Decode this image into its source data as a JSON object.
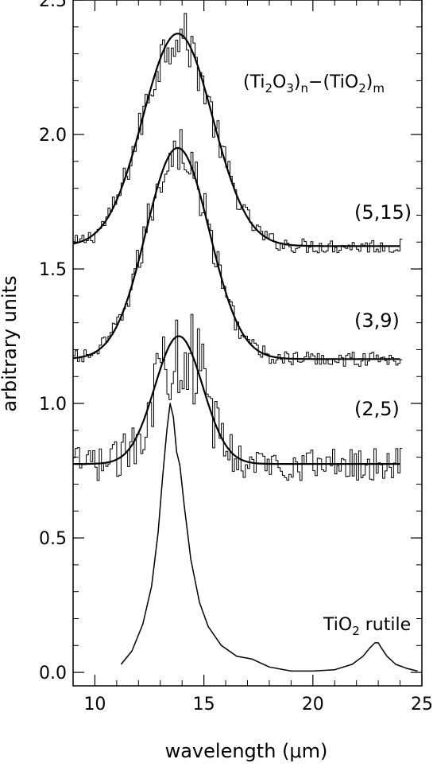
{
  "chart_data": {
    "type": "line",
    "title": "",
    "xlabel": "wavelength (μm)",
    "ylabel": "arbitrary units",
    "xlim": [
      9,
      25
    ],
    "ylim": [
      -0.05,
      2.5
    ],
    "x_ticks": [
      10,
      15,
      20,
      25
    ],
    "y_ticks": [
      0.0,
      0.5,
      1.0,
      1.5,
      2.0,
      2.5
    ],
    "x_tick_labels": [
      "10",
      "15",
      "20",
      "25"
    ],
    "y_tick_labels": [
      "0.0",
      "0.5",
      "1.0",
      "1.5",
      "2.0",
      "2.5"
    ],
    "grid": false,
    "legend": "none",
    "formula": {
      "open1": "(Ti",
      "sub1": "2",
      "mid1": "O",
      "sub2": "3",
      "close1": ")",
      "sub3": "n",
      "dash": "−",
      "open2": "(TiO",
      "sub4": "2",
      "close2": ")",
      "sub5": "m"
    },
    "rutile_label": {
      "pre": "TiO",
      "sub": "2",
      "post": " rutile"
    },
    "series": [
      {
        "label": "(5,15)",
        "kind": "histogram+fit",
        "fit": {
          "baseline": 1.585,
          "amplitude": 0.79,
          "center": 13.8,
          "width": 1.6
        },
        "noise_amplitude": 0.07,
        "x_range": [
          9,
          24
        ]
      },
      {
        "label": "(3,9)",
        "kind": "histogram+fit",
        "fit": {
          "baseline": 1.165,
          "amplitude": 0.785,
          "center": 13.8,
          "width": 1.45
        },
        "noise_amplitude": 0.07,
        "x_range": [
          9,
          24
        ]
      },
      {
        "label": "(2,5)",
        "kind": "histogram+fit",
        "fit": {
          "baseline": 0.775,
          "amplitude": 0.475,
          "center": 13.85,
          "width": 1.1
        },
        "noise_amplitude": 0.16,
        "x_range": [
          9,
          24
        ]
      },
      {
        "label": "TiO2 rutile",
        "kind": "line",
        "x": [
          11.2,
          11.7,
          12.2,
          12.6,
          12.9,
          13.1,
          13.3,
          13.45,
          13.6,
          13.75,
          13.9,
          14.1,
          14.4,
          14.8,
          15.2,
          15.8,
          16.5,
          17.2,
          18.0,
          19.0,
          20.0,
          21.0,
          21.8,
          22.3,
          22.6,
          22.85,
          23.0,
          23.15,
          23.4,
          23.8,
          24.3,
          24.8
        ],
        "y": [
          0.03,
          0.08,
          0.18,
          0.32,
          0.52,
          0.72,
          0.9,
          1.0,
          0.95,
          0.82,
          0.77,
          0.62,
          0.42,
          0.26,
          0.17,
          0.1,
          0.06,
          0.05,
          0.02,
          0.005,
          0.005,
          0.01,
          0.03,
          0.06,
          0.09,
          0.11,
          0.11,
          0.09,
          0.06,
          0.03,
          0.015,
          0.005
        ]
      }
    ]
  }
}
